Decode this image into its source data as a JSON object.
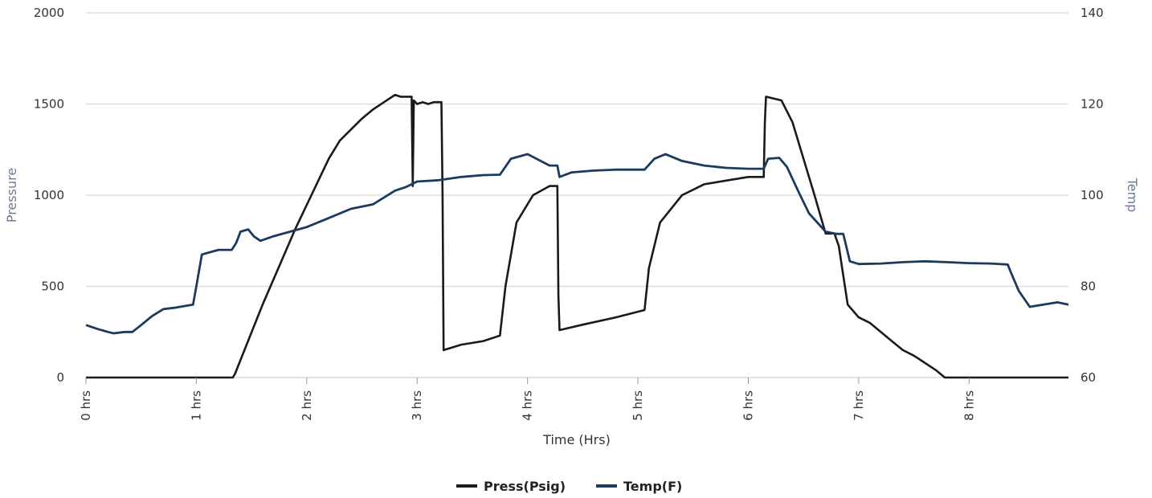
{
  "chart_data": {
    "type": "line",
    "xlabel": "Time (Hrs)",
    "ylabel": "Pressure",
    "y2label": "Temp",
    "xlim": [
      0,
      8.9
    ],
    "ylim": [
      0,
      2000
    ],
    "y2lim": [
      60,
      140
    ],
    "grid": true,
    "legend_position": "bottom-center",
    "x_ticks": [
      0,
      1,
      2,
      3,
      4,
      5,
      6,
      7,
      8
    ],
    "x_tick_labels": [
      "0 hrs",
      "1 hrs",
      "2 hrs",
      "3 hrs",
      "4 hrs",
      "5 hrs",
      "6 hrs",
      "7 hrs",
      "8 hrs"
    ],
    "y_ticks": [
      0,
      500,
      1000,
      1500,
      2000
    ],
    "y_tick_labels": [
      "0",
      "500",
      "1000",
      "1500",
      "2000"
    ],
    "y2_ticks": [
      60,
      80,
      100,
      120,
      140
    ],
    "y2_tick_labels": [
      "60",
      "80",
      "100",
      "120",
      "140"
    ],
    "legend": [
      "Press(Psig)",
      "Temp(F)"
    ],
    "series": [
      {
        "name": "Press(Psig)",
        "axis": "left",
        "color": "#1a1a1a",
        "x": [
          0,
          1.0,
          1.33,
          1.35,
          1.6,
          1.9,
          2.05,
          2.2,
          2.3,
          2.4,
          2.5,
          2.6,
          2.7,
          2.8,
          2.85,
          2.95,
          2.96,
          2.97,
          3.0,
          3.05,
          3.1,
          3.15,
          3.2,
          3.22,
          3.23,
          3.24,
          3.4,
          3.6,
          3.75,
          3.8,
          3.9,
          4.05,
          4.2,
          4.27,
          4.28,
          4.29,
          4.5,
          4.8,
          5.06,
          5.1,
          5.2,
          5.4,
          5.6,
          5.8,
          6.0,
          6.14,
          6.15,
          6.16,
          6.3,
          6.4,
          6.5,
          6.6,
          6.7,
          6.78,
          6.82,
          6.85,
          6.9,
          7.0,
          7.1,
          7.2,
          7.3,
          7.4,
          7.5,
          7.6,
          7.7,
          7.78,
          7.8,
          8.0,
          8.5,
          8.9
        ],
        "y": [
          0,
          0,
          0,
          20,
          400,
          820,
          1010,
          1200,
          1300,
          1360,
          1420,
          1470,
          1510,
          1550,
          1540,
          1540,
          1050,
          1520,
          1500,
          1510,
          1500,
          1510,
          1510,
          1510,
          1000,
          150,
          180,
          200,
          230,
          500,
          850,
          1000,
          1050,
          1050,
          450,
          260,
          290,
          330,
          370,
          600,
          850,
          1000,
          1060,
          1080,
          1100,
          1100,
          1400,
          1540,
          1520,
          1400,
          1200,
          1000,
          790,
          790,
          720,
          600,
          400,
          330,
          300,
          250,
          200,
          150,
          120,
          80,
          40,
          0,
          0,
          0,
          0,
          0
        ]
      },
      {
        "name": "Temp(F)",
        "axis": "right",
        "color": "#1b3a5c",
        "x": [
          0,
          0.1,
          0.2,
          0.25,
          0.35,
          0.42,
          0.5,
          0.6,
          0.7,
          0.8,
          0.9,
          0.97,
          1.0,
          1.05,
          1.2,
          1.32,
          1.36,
          1.4,
          1.47,
          1.52,
          1.58,
          1.7,
          1.85,
          2.0,
          2.2,
          2.4,
          2.6,
          2.8,
          2.9,
          3.0,
          3.2,
          3.4,
          3.6,
          3.75,
          3.85,
          4.0,
          4.2,
          4.27,
          4.29,
          4.4,
          4.6,
          4.8,
          5.06,
          5.15,
          5.25,
          5.4,
          5.6,
          5.8,
          6.0,
          6.14,
          6.18,
          6.28,
          6.35,
          6.45,
          6.55,
          6.7,
          6.8,
          6.86,
          6.92,
          7.0,
          7.2,
          7.4,
          7.6,
          7.8,
          8.0,
          8.2,
          8.35,
          8.38,
          8.45,
          8.55,
          8.65,
          8.8,
          8.9
        ],
        "y": [
          71.5,
          70.7,
          70,
          69.7,
          70,
          70,
          71.5,
          73.5,
          75,
          75.3,
          75.7,
          76,
          80,
          87,
          88,
          88,
          89.5,
          92,
          92.5,
          91,
          90,
          91,
          92,
          93,
          95,
          97,
          98,
          101,
          101.8,
          103,
          103.3,
          104,
          104.4,
          104.5,
          108,
          109,
          106.5,
          106.5,
          104,
          105,
          105.4,
          105.6,
          105.6,
          108,
          109,
          107.5,
          106.5,
          106,
          105.8,
          105.8,
          108,
          108.2,
          106.2,
          101,
          96,
          92,
          91.5,
          91.5,
          85.5,
          84.9,
          85,
          85.3,
          85.5,
          85.3,
          85.1,
          85,
          84.8,
          83,
          79,
          75.5,
          75.9,
          76.5,
          76
        ]
      }
    ]
  }
}
